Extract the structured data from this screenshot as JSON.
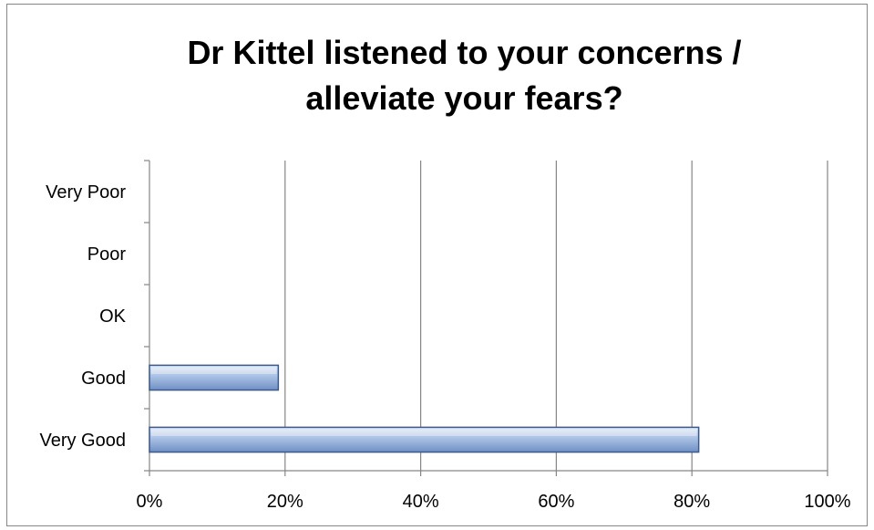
{
  "chart_data": {
    "type": "bar",
    "orientation": "horizontal",
    "title_lines": [
      "Dr Kittel listened to your concerns /",
      "alleviate your fears?"
    ],
    "categories": [
      "Very Good",
      "Good",
      "OK",
      "Poor",
      "Very Poor"
    ],
    "values": [
      81,
      19,
      0,
      0,
      0
    ],
    "x_ticks": [
      "0%",
      "20%",
      "40%",
      "60%",
      "80%",
      "100%"
    ],
    "xlim": [
      0,
      100
    ],
    "grid": true,
    "legend": "none",
    "bar_color": "#8eaadb",
    "bar_edge_color": "#3b5a8c"
  }
}
